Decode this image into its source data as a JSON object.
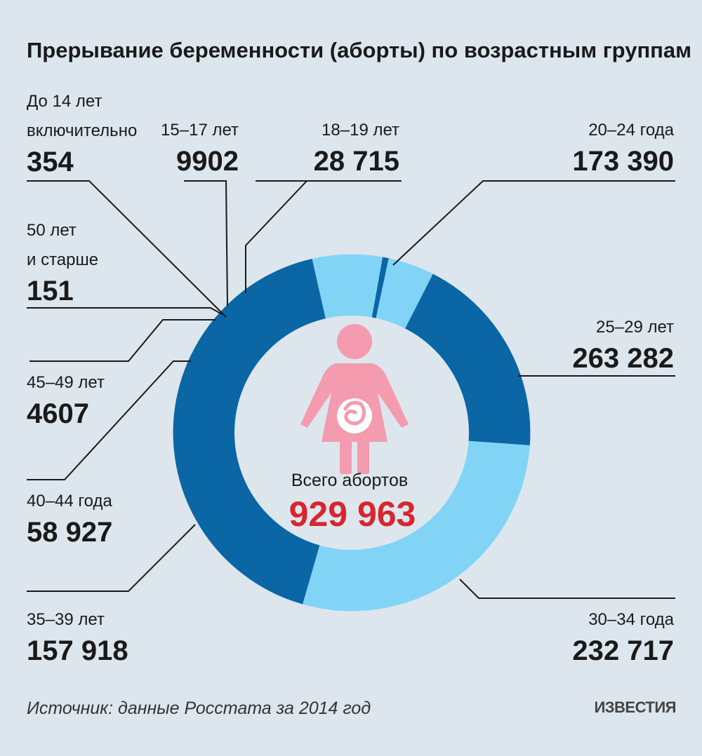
{
  "chart_data": {
    "type": "pie",
    "title": "Прерывание беременности (аборты) по возрастным группам",
    "series": [
      {
        "key": "g14",
        "label_lines": [
          "До 14 лет",
          "включительно"
        ],
        "value": 354,
        "value_text": "354",
        "color": "#0b66a6"
      },
      {
        "key": "g15",
        "label_lines": [
          "15–17 лет"
        ],
        "value": 9902,
        "value_text": "9902",
        "color": "#82d4f6"
      },
      {
        "key": "g18",
        "label_lines": [
          "18–19 лет"
        ],
        "value": 28715,
        "value_text": "28 715",
        "color": "#82d4f6"
      },
      {
        "key": "g20",
        "label_lines": [
          "20–24 года"
        ],
        "value": 173390,
        "value_text": "173 390",
        "color": "#0b66a6"
      },
      {
        "key": "g25",
        "label_lines": [
          "25–29 лет"
        ],
        "value": 263282,
        "value_text": "263 282",
        "color": "#82d4f6"
      },
      {
        "key": "g30",
        "label_lines": [
          "30–34 года"
        ],
        "value": 232717,
        "value_text": "232 717",
        "color": "#0b66a6"
      },
      {
        "key": "g35",
        "label_lines": [
          "35–39 лет"
        ],
        "value": 157918,
        "value_text": "157 918",
        "color": "#0b66a6"
      },
      {
        "key": "g40",
        "label_lines": [
          "40–44 года"
        ],
        "value": 58927,
        "value_text": "58 927",
        "color": "#82d4f6"
      },
      {
        "key": "g45",
        "label_lines": [
          "45–49 лет"
        ],
        "value": 4607,
        "value_text": "4607",
        "color": "#0b66a6"
      },
      {
        "key": "g50",
        "label_lines": [
          "50 лет",
          "и старше"
        ],
        "value": 151,
        "value_text": "151",
        "color": "#0b66a6"
      }
    ]
  },
  "center": {
    "label": "Всего абортов",
    "value": "929 963",
    "value_color": "#d7262f",
    "icon": "pregnant-woman-icon",
    "icon_color": "#f49bb0"
  },
  "footer": {
    "source": "Источник: данные Росстата за 2014 год",
    "logo": "ИЗВЕСТИЯ"
  },
  "colors": {
    "background": "#dde6ed",
    "dark_blue": "#0b66a6",
    "light_blue": "#82d4f6",
    "hole": "#dde6ed"
  }
}
